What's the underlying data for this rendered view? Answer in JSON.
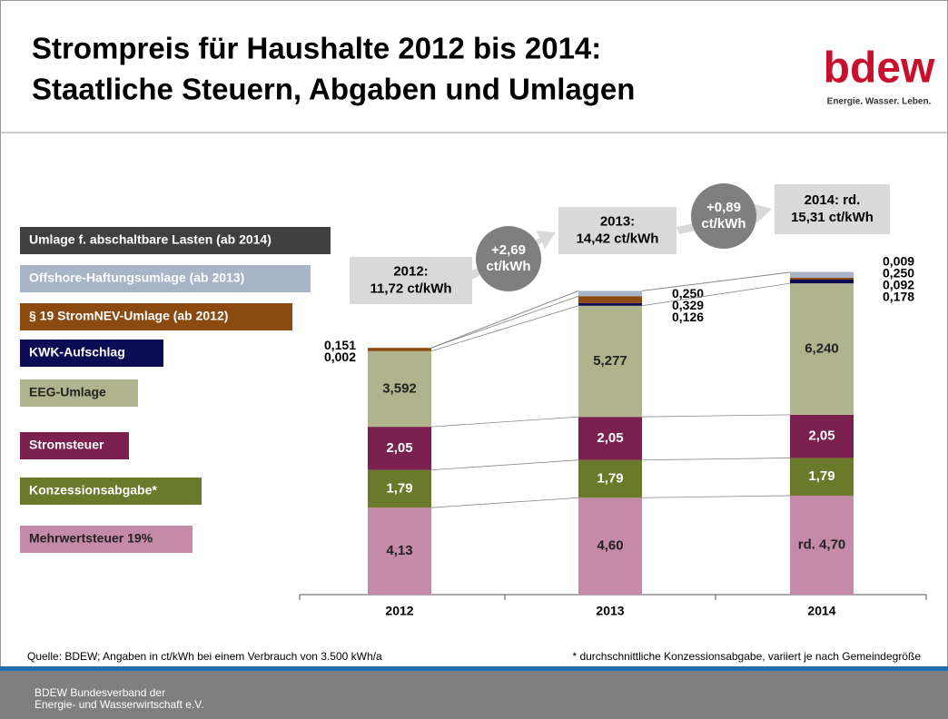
{
  "header": {
    "title_lines": [
      "Strompreis für Haushalte 2012 bis 2014:",
      "Staatliche Steuern, Abgaben und Umlagen"
    ],
    "logo": "bdew",
    "logo_tagline": "Energie. Wasser. Leben."
  },
  "chart_data": {
    "type": "stacked_bar",
    "categories": [
      "2012",
      "2013",
      "2014"
    ],
    "series": [
      {
        "name": "Mehrwertsteuer 19%",
        "color": "#c48aa8",
        "values": [
          4.13,
          4.6,
          4.7
        ],
        "value_labels": [
          "4,13",
          "4,60",
          "rd. 4,70"
        ]
      },
      {
        "name": "Konzessionsabgabe*",
        "color": "#6b7a2a",
        "values": [
          1.79,
          1.79,
          1.79
        ],
        "value_labels": [
          "1,79",
          "1,79",
          "1,79"
        ]
      },
      {
        "name": "Stromsteuer",
        "color": "#7b2150",
        "values": [
          2.05,
          2.05,
          2.05
        ],
        "value_labels": [
          "2,05",
          "2,05",
          "2,05"
        ]
      },
      {
        "name": "EEG-Umlage",
        "color": "#b0b48c",
        "values": [
          3.592,
          5.277,
          6.24
        ],
        "value_labels": [
          "3,592",
          "5,277",
          "6,240"
        ]
      },
      {
        "name": "KWK-Aufschlag",
        "color": "#0c0c55",
        "values": [
          0.002,
          0.126,
          0.178
        ],
        "value_labels": [
          "0,002",
          "0,126",
          "0,178"
        ]
      },
      {
        "name": "§ 19 StromNEV-Umlage (ab 2012)",
        "color": "#8b4a10",
        "values": [
          0.151,
          0.329,
          0.092
        ],
        "value_labels": [
          "0,151",
          "0,329",
          "0,092"
        ]
      },
      {
        "name": "Offshore-Haftungsumlage (ab 2013)",
        "color": "#a8b4c8",
        "values": [
          null,
          0.25,
          0.25
        ],
        "value_labels": [
          null,
          "0,250",
          "0,250"
        ]
      },
      {
        "name": "Umlage f. abschaltbare Lasten (ab 2014)",
        "color": "#404040",
        "values": [
          null,
          null,
          0.009
        ],
        "value_labels": [
          null,
          null,
          "0,009"
        ]
      }
    ],
    "totals": [
      {
        "lines": [
          "2012:",
          "11,72 ct/kWh"
        ]
      },
      {
        "lines": [
          "2013:",
          "14,42 ct/kWh"
        ]
      },
      {
        "lines": [
          "2014: rd.",
          "15,31 ct/kWh"
        ]
      }
    ],
    "increases": [
      {
        "lines": [
          "+2,69",
          "ct/kWh"
        ]
      },
      {
        "lines": [
          "+0,89",
          "ct/kWh"
        ]
      }
    ]
  },
  "footer": {
    "source": "Quelle: BDEW; Angaben in ct/kWh bei einem Verbrauch von 3.500 kWh/a",
    "footnote": "* durchschnittliche Konzessionsabgabe, variiert je nach Gemeindegröße",
    "org_lines": [
      "BDEW Bundesverband der",
      "Energie- und Wasserwirtschaft e.V."
    ]
  }
}
